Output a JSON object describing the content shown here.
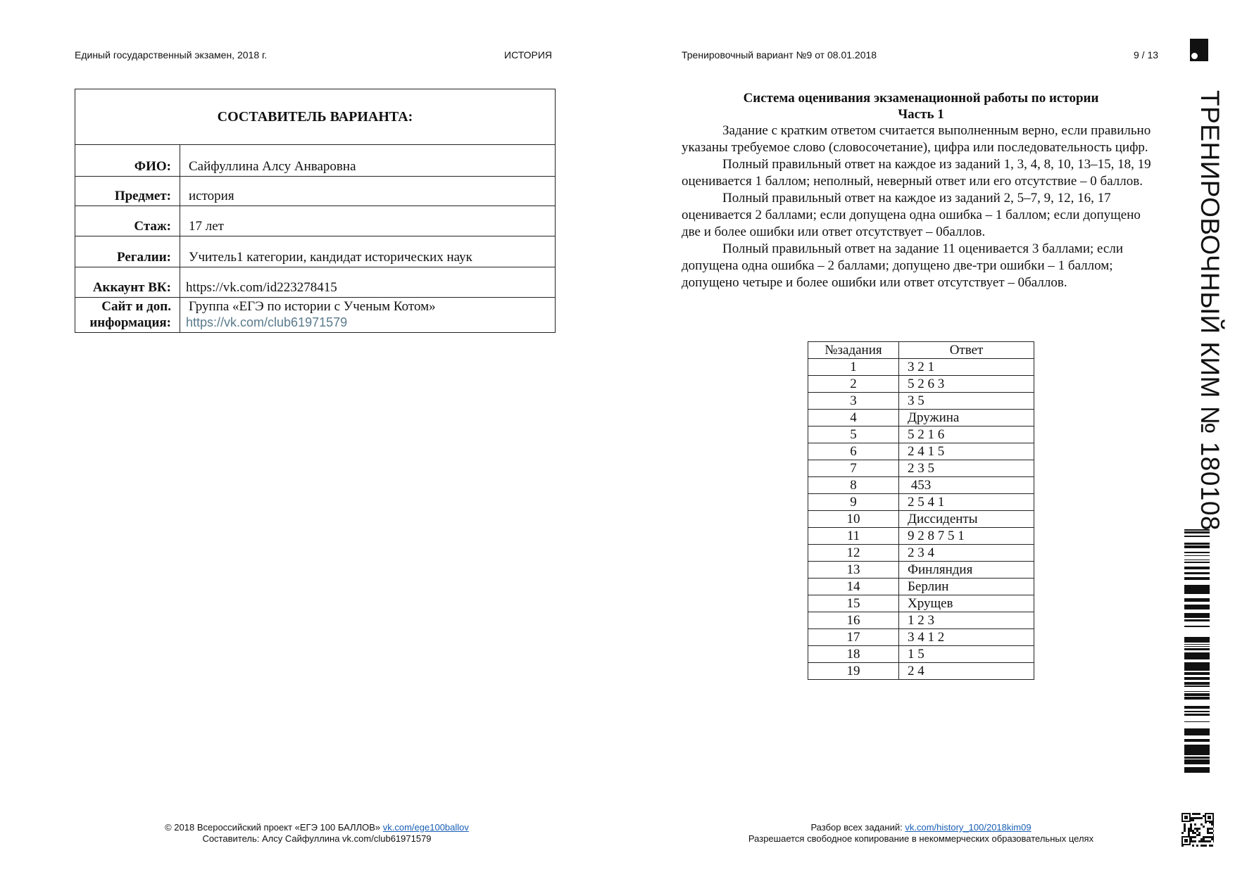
{
  "left_page": {
    "header_left": "Единый государственный экзамен, 2018 г.",
    "header_right": "ИСТОРИЯ",
    "table_title": "СОСТАВИТЕЛЬ ВАРИАНТА:",
    "rows": [
      {
        "label": "ФИО:",
        "value": "Сайфуллина  Алсу Анваровна"
      },
      {
        "label": "Предмет:",
        "value": "история"
      },
      {
        "label": "Стаж:",
        "value": "17 лет"
      },
      {
        "label": "Регалии:",
        "value": "Учитель1 категории, кандидат исторических наук"
      },
      {
        "label": "Аккаунт ВК:",
        "value": "https://vk.com/id223278415"
      }
    ],
    "site_label_1": "Сайт и доп.",
    "site_label_2": "информация:",
    "site_value": "Группа «ЕГЭ по истории с Ученым Котом»",
    "site_link": "https://vk.com/club61971579",
    "footer_line1": "© 2018 Всероссийский проект «ЕГЭ 100 БАЛЛОВ»",
    "footer_link": "vk.com/ege100ballov",
    "footer_line2": "Составитель: Алсу Сайфуллина vk.com/club61971579"
  },
  "right_page": {
    "header_left": "Тренировочный вариант №9 от 08.01.2018",
    "page_number": "9 / 13",
    "title": "Система оценивания экзаменационной работы по истории",
    "subtitle": "Часть 1",
    "paragraphs": [
      "Задание с кратким ответом считается выполненным верно, если правильно указаны требуемое слово (словосочетание), цифра или последовательность цифр.",
      "Полный правильный ответ на каждое из заданий 1, 3, 4, 8, 10, 13–15, 18, 19 оценивается 1 баллом; неполный, неверный ответ или его отсутствие – 0 баллов.",
      "Полный правильный ответ на каждое из заданий 2, 5–7, 9, 12, 16, 17 оценивается 2 баллами; если допущена одна ошибка – 1 баллом; если допущено две и более ошибки или ответ отсутствует – 0баллов.",
      "Полный правильный ответ на задание 11 оценивается 3 баллами; если допущена одна ошибка – 2 баллами; допущено две-три ошибки – 1 баллом; допущено четыре и более ошибки или ответ отсутствует – 0баллов."
    ],
    "answers_header": [
      "№задания",
      "Ответ"
    ],
    "answers": [
      [
        "1",
        "3 2 1"
      ],
      [
        "2",
        "5 2 6 3"
      ],
      [
        "3",
        "3 5"
      ],
      [
        "4",
        "Дружина"
      ],
      [
        "5",
        "5 2 1 6"
      ],
      [
        "6",
        "2 4 1 5"
      ],
      [
        "7",
        "2 3 5"
      ],
      [
        "8",
        " 453"
      ],
      [
        "9",
        "2 5 4 1"
      ],
      [
        "10",
        "Диссиденты"
      ],
      [
        "11",
        "9 2 8 7 5 1"
      ],
      [
        "12",
        "2 3 4"
      ],
      [
        "13",
        "Финляндия"
      ],
      [
        "14",
        "Берлин"
      ],
      [
        "15",
        "Хрущев"
      ],
      [
        "16",
        "1 2 3"
      ],
      [
        "17",
        "3 4 1 2"
      ],
      [
        "18",
        "1 5"
      ],
      [
        "19",
        "2 4"
      ]
    ],
    "footer_line1": "Разбор всех заданий:",
    "footer_link": "vk.com/history_100/2018kim09",
    "footer_line2": "Разрешается свободное копирование в некоммерческих образовательных целях"
  },
  "side_strip": {
    "vertical_title": "ТРЕНИРОВОЧНЫЙ КИМ № 180108",
    "icons": [
      "logo-icon",
      "barcode-icon",
      "qr-code-icon"
    ]
  }
}
